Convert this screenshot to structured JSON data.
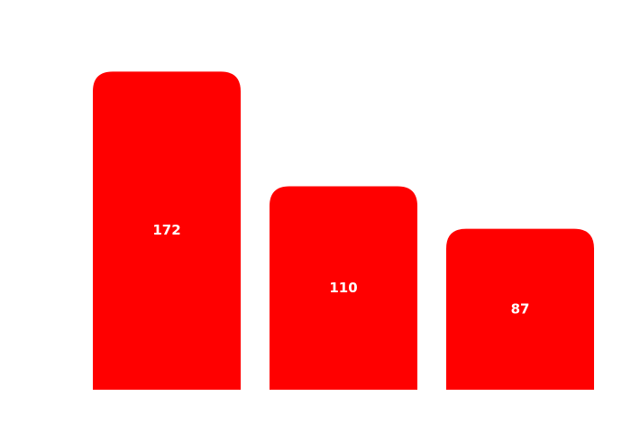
{
  "chart_data": {
    "type": "bar",
    "categories": [
      null,
      null,
      null
    ],
    "values": [
      172,
      110,
      87
    ],
    "color": "#ff0000",
    "ylim": [
      0,
      200
    ],
    "grid": false
  }
}
